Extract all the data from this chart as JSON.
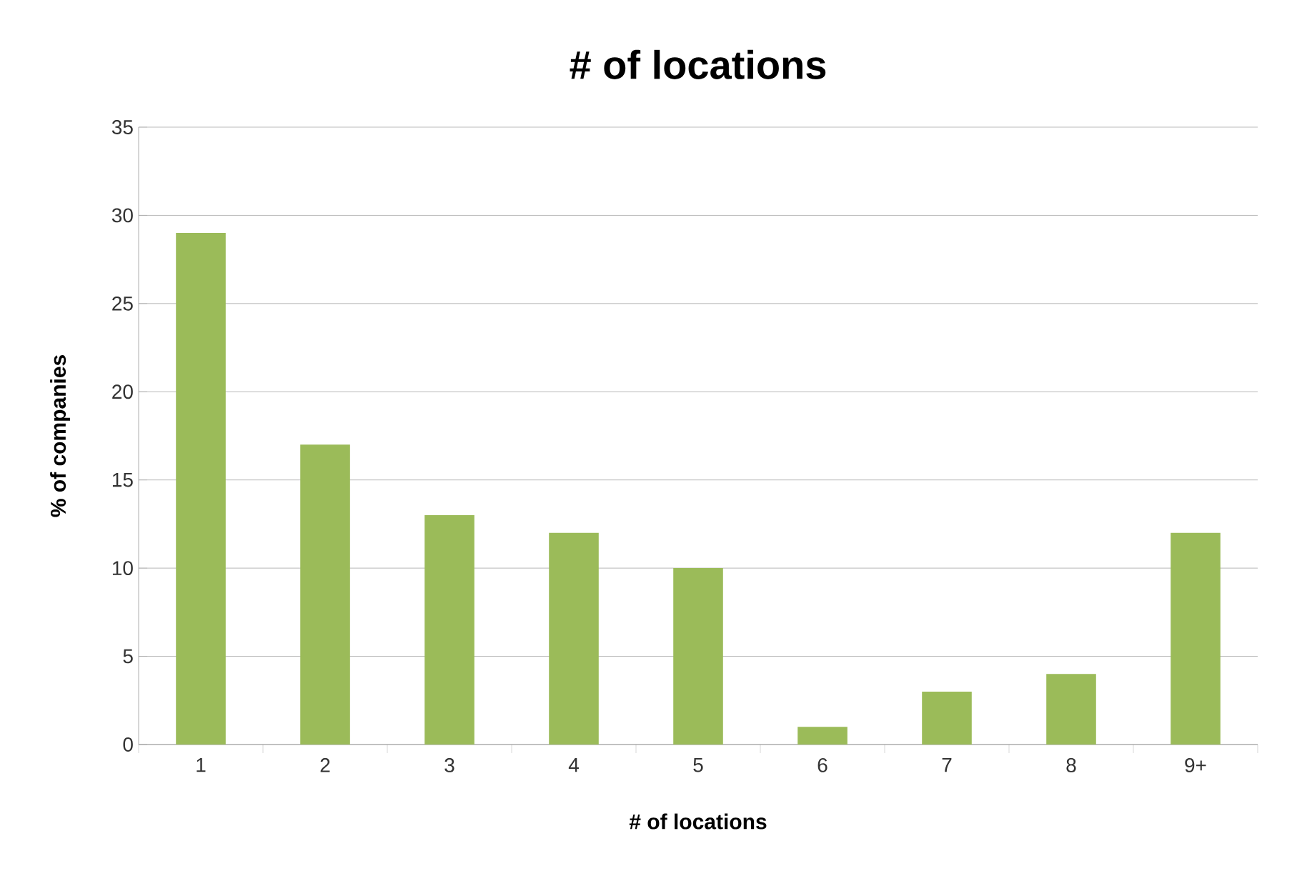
{
  "chart_data": {
    "type": "bar",
    "title": "# of locations",
    "xlabel": "# of locations",
    "ylabel": "% of companies",
    "categories": [
      "1",
      "2",
      "3",
      "4",
      "5",
      "6",
      "7",
      "8",
      "9+"
    ],
    "values": [
      29,
      17,
      13,
      12,
      10,
      1,
      3,
      4,
      12
    ],
    "color": "#9bbb59",
    "ylim": [
      0,
      35
    ],
    "yticks": [
      0,
      5,
      10,
      15,
      20,
      25,
      30,
      35
    ],
    "grid": "y"
  }
}
